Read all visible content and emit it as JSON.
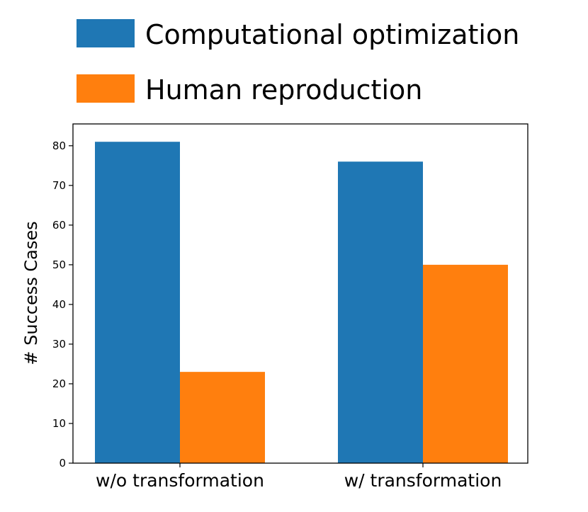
{
  "chart_data": {
    "type": "bar",
    "categories": [
      "w/o transformation",
      "w/ transformation"
    ],
    "series": [
      {
        "name": "Computational optimization",
        "values": [
          81,
          76
        ],
        "color": "#1f77b4"
      },
      {
        "name": "Human reproduction",
        "values": [
          23,
          50
        ],
        "color": "#ff7f0e"
      }
    ],
    "title": "",
    "xlabel": "",
    "ylabel": "# Success Cases",
    "ylim": [
      0,
      85.5
    ],
    "yticks": [
      0,
      10,
      20,
      30,
      40,
      50,
      60,
      70,
      80
    ],
    "grid": false,
    "legend_position": "top"
  }
}
